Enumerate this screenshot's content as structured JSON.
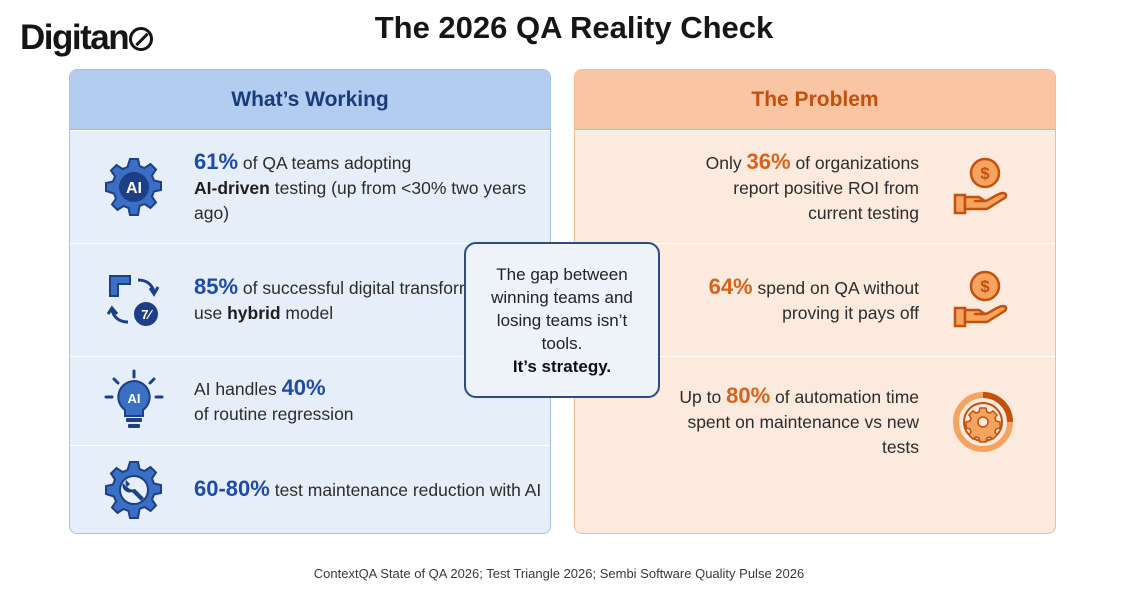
{
  "logo": {
    "text": "Digitan"
  },
  "title": "The 2026 QA Reality Check",
  "working": {
    "heading": "What’s Working",
    "items": [
      {
        "icon": "ai-gear-icon",
        "icon_label": "AI",
        "stat": "61%",
        "pre": " of QA teams adopting ",
        "bold": "AI-driven",
        "post": " testing (up from <30% two years ago)"
      },
      {
        "icon": "transformation-cycle-icon",
        "icon_label": "7⁄",
        "stat": "85%",
        "pre": " of successful digital transformations use ",
        "bold": "hybrid",
        "post": " model"
      },
      {
        "icon": "ai-lightbulb-icon",
        "icon_label": "AI",
        "lead": "AI handles ",
        "stat": "40%",
        "post": " of routine regression"
      },
      {
        "icon": "gear-wrench-icon",
        "stat": "60-80%",
        "post": " test maintenance reduction with AI"
      }
    ]
  },
  "problem": {
    "heading": "The Problem",
    "items": [
      {
        "icon": "hand-coin-icon",
        "icon_label": "$",
        "lead": "Only ",
        "stat": "36%",
        "post": " of organizations report positive ROI from current testing"
      },
      {
        "icon": "hand-coin-icon",
        "icon_label": "$",
        "stat": "64%",
        "post": " spend on QA without proving it pays off"
      },
      {
        "icon": "maintenance-cycle-icon",
        "lead": "Up to ",
        "stat": "80%",
        "post": " of automation time spent on maintenance vs new tests"
      }
    ]
  },
  "callout": {
    "line1": "The gap between winning teams and losing teams isn’t tools.",
    "line2": "It’s strategy."
  },
  "footer": "ContextQA State of QA 2026; Test Triangle 2026; Sembi Software Quality Pulse 2026",
  "colors": {
    "blue_accent": "#1f4aa8",
    "orange_accent": "#d9621a",
    "blue_panel": "#e6eef9",
    "orange_panel": "#fdeade"
  }
}
